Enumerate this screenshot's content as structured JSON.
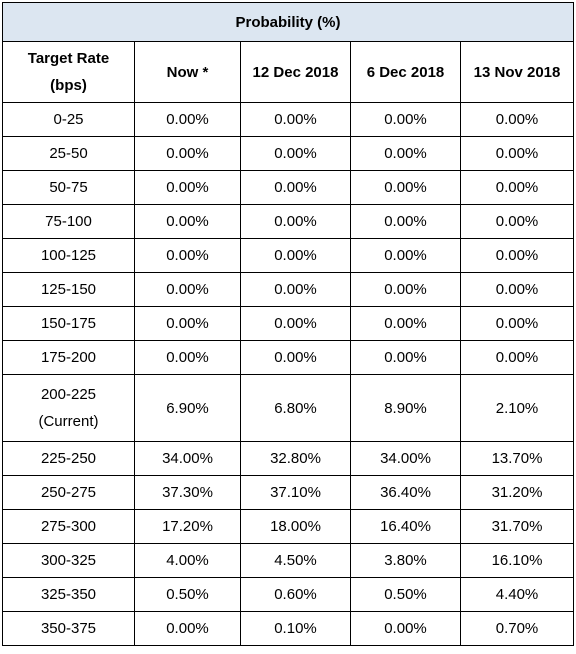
{
  "table": {
    "title": "Probability (%)",
    "columns": [
      "Target Rate\n(bps)",
      "Now *",
      "12 Dec 2018",
      "6 Dec 2018",
      "13 Nov 2018"
    ],
    "rows": [
      [
        "0-25",
        "0.00%",
        "0.00%",
        "0.00%",
        "0.00%"
      ],
      [
        "25-50",
        "0.00%",
        "0.00%",
        "0.00%",
        "0.00%"
      ],
      [
        "50-75",
        "0.00%",
        "0.00%",
        "0.00%",
        "0.00%"
      ],
      [
        "75-100",
        "0.00%",
        "0.00%",
        "0.00%",
        "0.00%"
      ],
      [
        "100-125",
        "0.00%",
        "0.00%",
        "0.00%",
        "0.00%"
      ],
      [
        "125-150",
        "0.00%",
        "0.00%",
        "0.00%",
        "0.00%"
      ],
      [
        "150-175",
        "0.00%",
        "0.00%",
        "0.00%",
        "0.00%"
      ],
      [
        "175-200",
        "0.00%",
        "0.00%",
        "0.00%",
        "0.00%"
      ],
      [
        "200-225\n(Current)",
        "6.90%",
        "6.80%",
        "8.90%",
        "2.10%"
      ],
      [
        "225-250",
        "34.00%",
        "32.80%",
        "34.00%",
        "13.70%"
      ],
      [
        "250-275",
        "37.30%",
        "37.10%",
        "36.40%",
        "31.20%"
      ],
      [
        "275-300",
        "17.20%",
        "18.00%",
        "16.40%",
        "31.70%"
      ],
      [
        "300-325",
        "4.00%",
        "4.50%",
        "3.80%",
        "16.10%"
      ],
      [
        "325-350",
        "0.50%",
        "0.60%",
        "0.50%",
        "4.40%"
      ],
      [
        "350-375",
        "0.00%",
        "0.10%",
        "0.00%",
        "0.70%"
      ]
    ]
  }
}
